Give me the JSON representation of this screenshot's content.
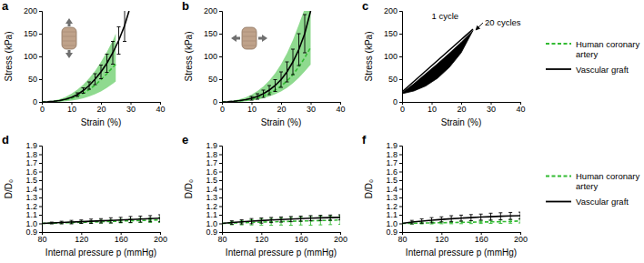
{
  "chart_data": [
    {
      "type": "line",
      "panel_label": "a",
      "xlabel": "Strain (%)",
      "ylabel": "Stress (kPa)",
      "xlim": [
        0,
        40
      ],
      "ylim": [
        0,
        200
      ],
      "xticks": [
        0,
        10,
        20,
        30,
        40
      ],
      "yticks": [
        0,
        50,
        100,
        150,
        200
      ],
      "series": [
        {
          "name": "Human coronary artery",
          "color": "#33bb33",
          "line_style": "dashed",
          "x": [
            0,
            2,
            4,
            6,
            8,
            10,
            12,
            14,
            16,
            18,
            20,
            22,
            24,
            25
          ],
          "values": [
            0,
            0.3,
            1,
            2.5,
            5,
            8,
            13,
            19,
            27,
            37,
            49,
            62,
            76,
            83
          ],
          "band_lower": [
            0,
            0,
            0,
            0.5,
            1.5,
            3,
            5,
            8,
            12,
            17,
            23,
            31,
            40,
            45
          ],
          "band_upper": [
            0,
            1,
            3,
            6,
            11,
            18,
            27,
            38,
            52,
            68,
            88,
            110,
            135,
            150
          ]
        },
        {
          "name": "Vascular graft",
          "color": "#000000",
          "line_style": "solid",
          "x": [
            0,
            2,
            4,
            6,
            8,
            10,
            12,
            14,
            16,
            18,
            20,
            22,
            24,
            26,
            28,
            29.5
          ],
          "values": [
            0,
            0.5,
            1.5,
            3,
            6,
            10,
            16,
            25,
            36,
            50,
            66,
            85,
            108,
            135,
            168,
            200
          ],
          "errors": [
            null,
            null,
            null,
            null,
            null,
            null,
            4,
            6,
            8,
            12,
            15,
            20,
            25,
            30,
            35,
            null
          ]
        }
      ]
    },
    {
      "type": "line",
      "panel_label": "b",
      "xlabel": "Strain (%)",
      "ylabel": "Stress (kPa)",
      "xlim": [
        0,
        40
      ],
      "ylim": [
        0,
        200
      ],
      "xticks": [
        0,
        10,
        20,
        30,
        40
      ],
      "yticks": [
        0,
        50,
        100,
        150,
        200
      ],
      "legend": "right",
      "series": [
        {
          "name": "Human coronary artery",
          "color": "#33bb33",
          "line_style": "dashed",
          "x": [
            0,
            2,
            4,
            6,
            8,
            10,
            12,
            14,
            16,
            18,
            20,
            22,
            24,
            26,
            28,
            30
          ],
          "values": [
            0,
            0.3,
            1,
            2,
            4,
            6,
            9,
            13,
            19,
            26,
            35,
            46,
            60,
            77,
            97,
            120
          ],
          "band_lower": [
            0,
            0,
            0,
            0.5,
            1.5,
            3,
            5,
            8,
            12,
            17,
            23,
            31,
            41,
            53,
            67,
            82
          ],
          "band_upper": [
            0,
            1,
            3,
            6,
            10,
            16,
            24,
            34,
            47,
            63,
            83,
            107,
            136,
            170,
            205,
            240
          ]
        },
        {
          "name": "Vascular graft",
          "color": "#000000",
          "line_style": "solid",
          "x": [
            0,
            2,
            4,
            6,
            8,
            10,
            12,
            14,
            16,
            18,
            20,
            22,
            24,
            26,
            28,
            30
          ],
          "values": [
            0,
            0.5,
            1.5,
            3,
            5,
            8,
            12,
            18,
            26,
            36,
            49,
            66,
            88,
            115,
            150,
            200
          ],
          "errors": [
            null,
            null,
            null,
            null,
            null,
            4,
            6,
            8,
            10,
            13,
            17,
            22,
            28,
            35,
            42,
            null
          ]
        }
      ]
    },
    {
      "type": "line",
      "panel_label": "c",
      "xlabel": "Strain (%)",
      "ylabel": "Stress (kPa)",
      "xlim": [
        0,
        40
      ],
      "ylim": [
        0,
        200
      ],
      "xticks": [
        0,
        10,
        20,
        30,
        40
      ],
      "yticks": [
        0,
        50,
        100,
        150,
        200
      ],
      "series": [
        {
          "color": "#000000",
          "line_style": "solid",
          "x": [
            0,
            4,
            8,
            12,
            16,
            20,
            24
          ],
          "values": [
            22,
            45,
            68,
            91,
            114,
            137,
            160
          ]
        },
        {
          "type": "area",
          "color": "#000000",
          "x": [
            0,
            4,
            8,
            12,
            16,
            20,
            24
          ],
          "values": [
            20,
            40,
            62,
            84,
            107,
            131,
            157
          ],
          "lower": [
            18,
            24,
            35,
            52,
            76,
            108,
            157
          ]
        }
      ],
      "annotations": [
        {
          "text": "1 cycle",
          "x": 10,
          "y": 182
        },
        {
          "text": "20 cycles",
          "x": 28,
          "y": 168,
          "arrow_to": [
            24.6,
            158
          ]
        }
      ]
    },
    {
      "type": "line",
      "panel_label": "d",
      "xlabel": "Internal pressure p (mmHg)",
      "ylabel": "D/D₀",
      "xlim": [
        80,
        200
      ],
      "ylim": [
        0.9,
        1.9
      ],
      "xticks": [
        80,
        120,
        160,
        200
      ],
      "yticks": [
        0.9,
        {
          "value": 1,
          "label": "1.0"
        },
        1.1,
        1.2,
        1.3,
        1.4,
        1.5,
        1.6,
        1.7,
        1.8,
        1.9
      ],
      "x": [
        80,
        90,
        100,
        110,
        120,
        130,
        140,
        150,
        160,
        170,
        180,
        190,
        200
      ],
      "series": [
        {
          "name": "Human coronary artery",
          "color": "#33bb33",
          "line_style": "dashed",
          "values": [
            1.0,
            1.003,
            1.006,
            1.01,
            1.013,
            1.016,
            1.02,
            1.023,
            1.027,
            1.03,
            1.034,
            1.037,
            1.04
          ],
          "errors": [
            null,
            0.005,
            0.008,
            0.01,
            0.012,
            0.014,
            0.016,
            0.018,
            0.02,
            0.022,
            0.024,
            0.026,
            0.03
          ]
        },
        {
          "name": "Vascular graft",
          "color": "#000000",
          "line_style": "solid",
          "values": [
            1.0,
            1.005,
            1.01,
            1.015,
            1.02,
            1.025,
            1.03,
            1.035,
            1.04,
            1.045,
            1.05,
            1.055,
            1.06
          ],
          "errors": [
            null,
            0.01,
            0.015,
            0.02,
            0.02,
            0.025,
            0.025,
            0.03,
            0.03,
            0.035,
            0.035,
            0.035,
            0.04
          ]
        }
      ]
    },
    {
      "type": "line",
      "panel_label": "e",
      "xlabel": "Internal pressure p (mmHg)",
      "ylabel": "D/D₀",
      "xlim": [
        80,
        200
      ],
      "ylim": [
        0.9,
        1.9
      ],
      "xticks": [
        80,
        120,
        160,
        200
      ],
      "yticks": [
        0.9,
        {
          "value": 1,
          "label": "1.0"
        },
        1.1,
        1.2,
        1.3,
        1.4,
        1.5,
        1.6,
        1.7,
        1.8,
        1.9
      ],
      "x": [
        80,
        90,
        100,
        110,
        120,
        130,
        140,
        150,
        160,
        170,
        180,
        190,
        200
      ],
      "series": [
        {
          "name": "Human coronary artery",
          "color": "#33bb33",
          "line_style": "dashed",
          "values": [
            1.0,
            1.004,
            1.008,
            1.012,
            1.015,
            1.018,
            1.021,
            1.024,
            1.027,
            1.03,
            1.033,
            1.036,
            1.04
          ],
          "errors": [
            null,
            0.02,
            0.025,
            0.03,
            0.035,
            0.04,
            0.04,
            0.045,
            0.045,
            0.05,
            0.05,
            0.05,
            0.05
          ]
        },
        {
          "name": "Vascular graft",
          "color": "#000000",
          "line_style": "solid",
          "values": [
            1.0,
            1.01,
            1.018,
            1.026,
            1.033,
            1.039,
            1.045,
            1.05,
            1.055,
            1.06,
            1.064,
            1.067,
            1.07
          ],
          "errors": [
            null,
            0.02,
            0.025,
            0.03,
            0.03,
            0.03,
            0.03,
            0.03,
            0.03,
            0.03,
            0.03,
            0.03,
            0.03
          ]
        }
      ]
    },
    {
      "type": "line",
      "panel_label": "f",
      "xlabel": "Internal pressure p (mmHg)",
      "ylabel": "D/D₀",
      "xlim": [
        80,
        200
      ],
      "ylim": [
        0.9,
        1.9
      ],
      "xticks": [
        80,
        120,
        160,
        200
      ],
      "yticks": [
        0.9,
        {
          "value": 1,
          "label": "1.0"
        },
        1.1,
        1.2,
        1.3,
        1.4,
        1.5,
        1.6,
        1.7,
        1.8,
        1.9
      ],
      "legend": "right",
      "x": [
        80,
        90,
        100,
        110,
        120,
        130,
        140,
        150,
        160,
        170,
        180,
        190,
        200
      ],
      "series": [
        {
          "name": "Human coronary artery",
          "color": "#33bb33",
          "line_style": "dashed",
          "values": [
            1.0,
            1.002,
            1.004,
            1.006,
            1.008,
            1.01,
            1.012,
            1.014,
            1.016,
            1.018,
            1.02,
            1.022,
            1.03
          ],
          "errors": [
            null,
            0.01,
            0.01,
            0.012,
            0.012,
            0.014,
            0.015,
            0.016,
            0.017,
            0.018,
            0.02,
            0.02,
            0.025
          ]
        },
        {
          "name": "Vascular graft",
          "color": "#000000",
          "line_style": "solid",
          "values": [
            1.0,
            1.015,
            1.027,
            1.037,
            1.046,
            1.054,
            1.061,
            1.067,
            1.073,
            1.078,
            1.083,
            1.087,
            1.09
          ],
          "errors": [
            null,
            0.02,
            0.025,
            0.03,
            0.03,
            0.035,
            0.035,
            0.035,
            0.035,
            0.04,
            0.04,
            0.04,
            0.04
          ]
        }
      ]
    }
  ]
}
